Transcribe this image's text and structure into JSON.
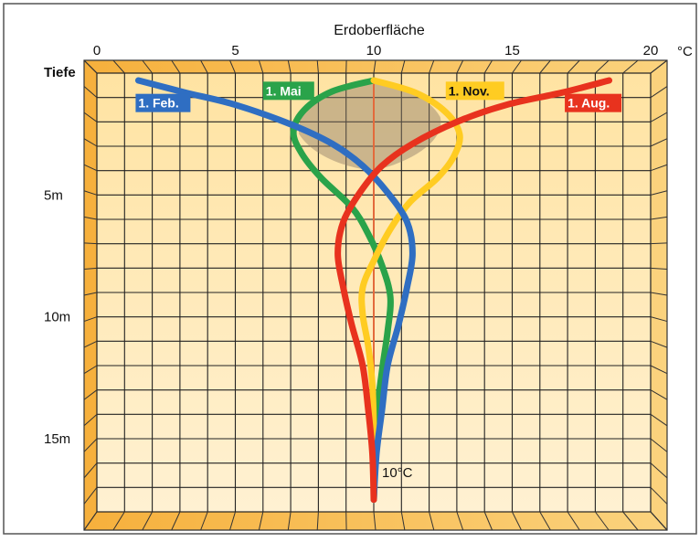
{
  "chart_data": {
    "type": "line",
    "title": "Erdoberfläche",
    "xunit": "°C",
    "ylabel": "Tiefe",
    "xlim": [
      0,
      20
    ],
    "ylim": [
      0,
      18
    ],
    "x_ticks": [
      "0",
      "5",
      "10",
      "15",
      "20"
    ],
    "x_tick_values": [
      0,
      5,
      10,
      15,
      20
    ],
    "y_ticks": [
      "5m",
      "10m",
      "15m"
    ],
    "y_tick_values": [
      5,
      10,
      15
    ],
    "grid": true,
    "reference_line": {
      "x": 10,
      "label": "10°C"
    },
    "series": [
      {
        "name": "1. Feb.",
        "color": "#2f6ec2",
        "points": [
          [
            1.5,
            0.3
          ],
          [
            3.2,
            0.8
          ],
          [
            5,
            1.3
          ],
          [
            7,
            2.1
          ],
          [
            8.5,
            2.9
          ],
          [
            9.6,
            3.8
          ],
          [
            10.5,
            4.9
          ],
          [
            11.2,
            6.1
          ],
          [
            11.4,
            7.4
          ],
          [
            11.2,
            8.8
          ],
          [
            10.9,
            10.3
          ],
          [
            10.5,
            12.0
          ],
          [
            10.3,
            13.8
          ],
          [
            10.1,
            15.6
          ],
          [
            10,
            17.5
          ]
        ]
      },
      {
        "name": "1. Mai",
        "color": "#2aa34a",
        "points": [
          [
            10,
            0.3
          ],
          [
            8.5,
            0.75
          ],
          [
            7.5,
            1.5
          ],
          [
            7.1,
            2.4
          ],
          [
            7.4,
            3.3
          ],
          [
            8.1,
            4.3
          ],
          [
            9.2,
            5.5
          ],
          [
            9.8,
            6.6
          ],
          [
            10.3,
            7.9
          ],
          [
            10.6,
            9.2
          ],
          [
            10.5,
            10.6
          ],
          [
            10.3,
            12.2
          ],
          [
            10.1,
            14.2
          ],
          [
            10,
            17.5
          ]
        ]
      },
      {
        "name": "1. Nov.",
        "color": "#ffcc22",
        "points": [
          [
            10,
            0.3
          ],
          [
            11.5,
            0.8
          ],
          [
            12.6,
            1.6
          ],
          [
            13.1,
            2.5
          ],
          [
            12.9,
            3.4
          ],
          [
            12.3,
            4.3
          ],
          [
            11.3,
            5.3
          ],
          [
            10.6,
            6.4
          ],
          [
            10,
            7.7
          ],
          [
            9.6,
            8.8
          ],
          [
            9.6,
            9.9
          ],
          [
            9.8,
            11.2
          ],
          [
            9.95,
            12.8
          ],
          [
            10,
            14.8
          ],
          [
            10,
            17.5
          ]
        ]
      },
      {
        "name": "1. Aug.",
        "color": "#e8321e",
        "points": [
          [
            18.5,
            0.3
          ],
          [
            16.8,
            0.8
          ],
          [
            14.8,
            1.3
          ],
          [
            13,
            2
          ],
          [
            11.4,
            2.9
          ],
          [
            10.3,
            3.8
          ],
          [
            9.5,
            4.9
          ],
          [
            8.9,
            6.1
          ],
          [
            8.7,
            7.4
          ],
          [
            8.9,
            8.8
          ],
          [
            9.2,
            10.3
          ],
          [
            9.6,
            12.0
          ],
          [
            9.8,
            13.8
          ],
          [
            9.95,
            15.6
          ],
          [
            10,
            17.5
          ]
        ]
      }
    ]
  }
}
